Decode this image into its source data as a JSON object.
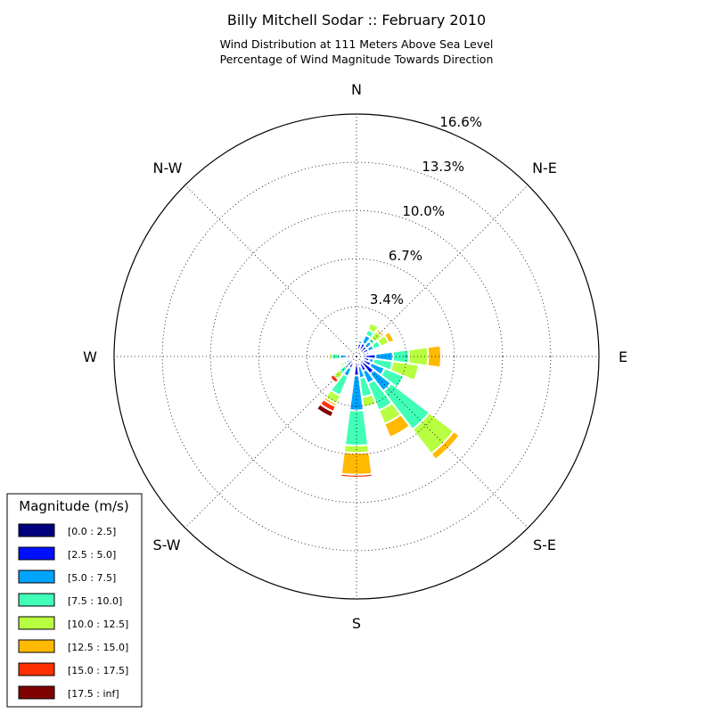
{
  "chart_data": {
    "type": "windrose",
    "title": "Billy Mitchell Sodar :: February 2010",
    "subtitle_lines": [
      "Wind Distribution at 111 Meters Above Sea Level",
      "Percentage of Wind Magnitude Towards Direction"
    ],
    "directions": [
      "N",
      "N-E",
      "E",
      "S-E",
      "S",
      "S-W",
      "W",
      "N-W"
    ],
    "radial_ticks": [
      "3.4%",
      "6.7%",
      "10.0%",
      "13.3%",
      "16.6%"
    ],
    "radial_tick_values": [
      3.4,
      6.7,
      10.0,
      13.3,
      16.6
    ],
    "rmax": 16.6,
    "grid": true,
    "legend": {
      "title": "Magnitude (m/s)",
      "placement": "lower-left",
      "bins": [
        {
          "label": "[0.0 : 2.5]",
          "color": "#00007f"
        },
        {
          "label": "[2.5 : 5.0]",
          "color": "#0010ff"
        },
        {
          "label": "[5.0 : 7.5]",
          "color": "#00a4ff"
        },
        {
          "label": "[7.5 : 10.0]",
          "color": "#40ffb7"
        },
        {
          "label": "[10.0 : 12.5]",
          "color": "#b7ff40"
        },
        {
          "label": "[12.5 : 15.0]",
          "color": "#ffb900"
        },
        {
          "label": "[15.0 : 17.5]",
          "color": "#ff3000"
        },
        {
          "label": "[17.5 : inf]",
          "color": "#7f0000"
        }
      ]
    },
    "sector_width_deg": 15,
    "sectors": [
      {
        "angle": 0,
        "cumulative": [
          0.3,
          0.45,
          0.5,
          0.5,
          0.5,
          0.5,
          0.5,
          0.5
        ]
      },
      {
        "angle": 15,
        "cumulative": [
          0.5,
          0.9,
          1.1,
          1.2,
          1.2,
          1.2,
          1.2,
          1.2
        ]
      },
      {
        "angle": 30,
        "cumulative": [
          0.4,
          1.0,
          1.6,
          2.0,
          2.5,
          2.5,
          2.5,
          2.5
        ]
      },
      {
        "angle": 45,
        "cumulative": [
          0.4,
          0.9,
          1.3,
          1.6,
          2.2,
          2.4,
          2.5,
          2.5
        ]
      },
      {
        "angle": 60,
        "cumulative": [
          0.4,
          0.9,
          1.3,
          1.8,
          2.4,
          2.8,
          2.9,
          2.9
        ]
      },
      {
        "angle": 75,
        "cumulative": [
          0.4,
          0.7,
          0.9,
          1.0,
          1.0,
          1.0,
          1.0,
          1.0
        ]
      },
      {
        "angle": 90,
        "cumulative": [
          0.5,
          1.3,
          2.5,
          3.6,
          4.9,
          5.8,
          5.9,
          5.95
        ]
      },
      {
        "angle": 105,
        "cumulative": [
          0.4,
          0.9,
          1.2,
          2.5,
          4.3,
          4.4,
          4.5,
          4.5
        ]
      },
      {
        "angle": 120,
        "cumulative": [
          0.5,
          1.1,
          2.1,
          3.5,
          3.5,
          3.5,
          3.5,
          3.5
        ]
      },
      {
        "angle": 135,
        "cumulative": [
          0.5,
          1.5,
          3.0,
          6.3,
          8.4,
          8.9,
          9.0,
          9.05
        ]
      },
      {
        "angle": 150,
        "cumulative": [
          0.5,
          1.1,
          2.0,
          4.0,
          5.0,
          6.0,
          6.1,
          6.15
        ]
      },
      {
        "angle": 165,
        "cumulative": [
          0.3,
          0.7,
          1.5,
          2.8,
          3.5,
          3.5,
          3.5,
          3.5
        ]
      },
      {
        "angle": 180,
        "cumulative": [
          0.4,
          1.3,
          3.7,
          6.1,
          6.6,
          8.1,
          8.3,
          8.35
        ]
      },
      {
        "angle": 195,
        "cumulative": [
          0.4,
          0.6,
          0.6,
          0.6,
          0.6,
          0.6,
          0.6,
          0.6
        ]
      },
      {
        "angle": 210,
        "cumulative": [
          0.5,
          0.9,
          1.5,
          2.9,
          3.5,
          3.7,
          4.1,
          4.5
        ]
      },
      {
        "angle": 225,
        "cumulative": [
          0.4,
          0.8,
          1.0,
          1.5,
          2.0,
          2.0,
          2.3,
          2.3
        ]
      },
      {
        "angle": 240,
        "cumulative": [
          0.3,
          0.5,
          0.8,
          1.0,
          1.2,
          1.2,
          1.2,
          1.2
        ]
      },
      {
        "angle": 255,
        "cumulative": [
          0.3,
          0.5,
          0.6,
          0.6,
          0.6,
          0.6,
          0.6,
          0.6
        ]
      },
      {
        "angle": 270,
        "cumulative": [
          0.3,
          0.7,
          1.1,
          1.7,
          1.9,
          2.0,
          2.0,
          2.0
        ]
      },
      {
        "angle": 285,
        "cumulative": [
          0.2,
          0.4,
          0.5,
          0.5,
          0.5,
          0.5,
          0.5,
          0.5
        ]
      },
      {
        "angle": 300,
        "cumulative": [
          0.3,
          0.5,
          0.6,
          0.7,
          0.7,
          0.7,
          0.7,
          0.7
        ]
      },
      {
        "angle": 315,
        "cumulative": [
          0.2,
          0.3,
          0.3,
          0.3,
          0.3,
          0.3,
          0.3,
          0.3
        ]
      },
      {
        "angle": 330,
        "cumulative": [
          0.2,
          0.3,
          0.3,
          0.3,
          0.3,
          0.3,
          0.3,
          0.3
        ]
      },
      {
        "angle": 345,
        "cumulative": [
          0.5,
          0.6,
          0.6,
          0.6,
          0.6,
          0.6,
          0.6,
          0.6
        ]
      }
    ]
  }
}
